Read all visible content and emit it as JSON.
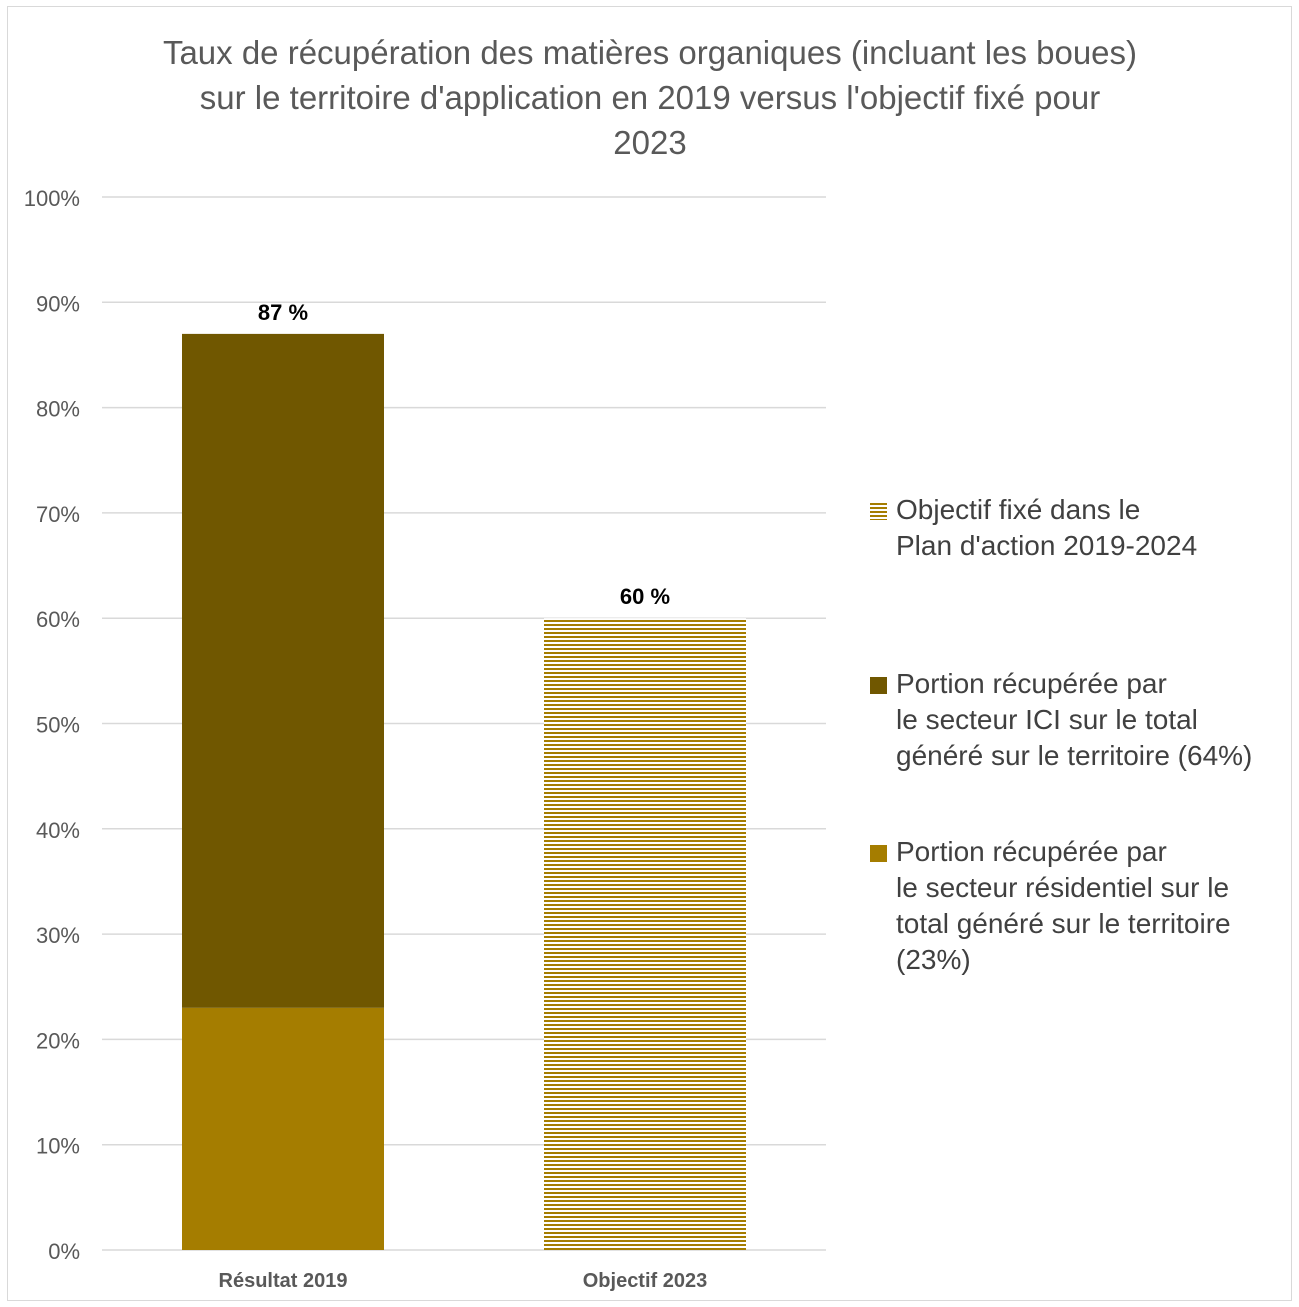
{
  "chart_data": {
    "type": "bar",
    "stacked": true,
    "title": "Taux de récupération des matières organiques (incluant les boues)\nsur le territoire d'application en 2019 versus l'objectif fixé pour\n2023",
    "categories": [
      "Résultat 2019",
      "Objectif 2023"
    ],
    "series": [
      {
        "name": "Portion récupérée par\nle secteur résidentiel sur le\ntotal généré sur le territoire\n(23%)",
        "color": "#a57d00",
        "pattern": "solid",
        "values": [
          23,
          0
        ]
      },
      {
        "name": "Portion récupérée par\nle secteur ICI sur le total\ngénéré sur le territoire (64%)",
        "color": "#705700",
        "pattern": "solid",
        "values": [
          64,
          0
        ]
      },
      {
        "name": "Objectif fixé dans le\nPlan d'action 2019-2024",
        "color": "#a57d00",
        "pattern": "horizontal-stripes",
        "values": [
          0,
          60
        ]
      }
    ],
    "totals": [
      87,
      60
    ],
    "total_labels": [
      "87 %",
      "60 %"
    ],
    "ylim": [
      0,
      100
    ],
    "yticks": [
      0,
      10,
      20,
      30,
      40,
      50,
      60,
      70,
      80,
      90,
      100
    ],
    "ytick_labels": [
      "0%",
      "10%",
      "20%",
      "30%",
      "40%",
      "50%",
      "60%",
      "70%",
      "80%",
      "90%",
      "100%"
    ],
    "xlabel": "",
    "ylabel": "",
    "grid": true,
    "legend_position": "right"
  },
  "legend": {
    "items": [
      {
        "label": "Objectif fixé dans le\nPlan d'action 2019-2024",
        "color": "#a57d00",
        "pattern": "horizontal-stripes"
      },
      {
        "label": "Portion récupérée par\nle secteur ICI sur le total\ngénéré sur le territoire (64%)",
        "color": "#705700",
        "pattern": "solid"
      },
      {
        "label": "Portion récupérée par\nle secteur résidentiel sur le\ntotal généré sur le territoire\n(23%)",
        "color": "#a57d00",
        "pattern": "solid"
      }
    ]
  },
  "colors": {
    "gridline": "#d9d9d9",
    "axis_text": "#595959",
    "category_text": "#595959",
    "data_label_text": "#000000"
  }
}
